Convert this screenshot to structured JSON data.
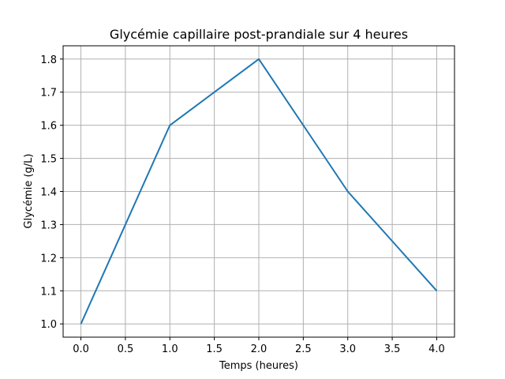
{
  "chart_data": {
    "type": "line",
    "title": "Glycémie capillaire post-prandiale sur 4 heures",
    "xlabel": "Temps (heures)",
    "ylabel": "Glycémie (g/L)",
    "x": [
      0,
      1,
      2,
      3,
      4
    ],
    "series": [
      {
        "values": [
          1.0,
          1.6,
          1.8,
          1.4,
          1.1
        ],
        "color": "#1f77b4"
      }
    ],
    "xlim": [
      -0.2,
      4.2
    ],
    "ylim": [
      0.96,
      1.84
    ],
    "xticks": [
      0.0,
      0.5,
      1.0,
      1.5,
      2.0,
      2.5,
      3.0,
      3.5,
      4.0
    ],
    "xtick_labels": [
      "0.0",
      "0.5",
      "1.0",
      "1.5",
      "2.0",
      "2.5",
      "3.0",
      "3.5",
      "4.0"
    ],
    "yticks": [
      1.0,
      1.1,
      1.2,
      1.3,
      1.4,
      1.5,
      1.6,
      1.7,
      1.8
    ],
    "ytick_labels": [
      "1.0",
      "1.1",
      "1.2",
      "1.3",
      "1.4",
      "1.5",
      "1.6",
      "1.7",
      "1.8"
    ],
    "grid": true,
    "legend": false
  }
}
